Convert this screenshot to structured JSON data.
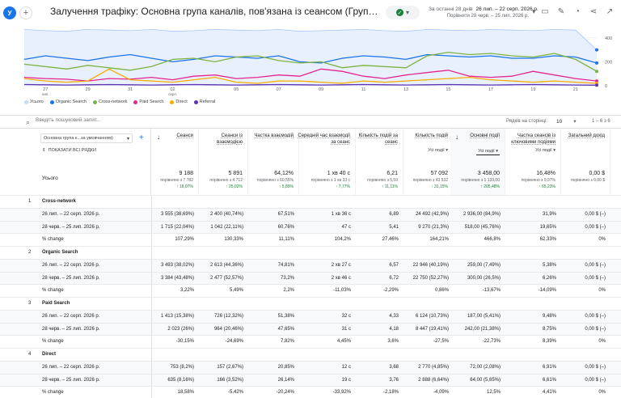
{
  "header": {
    "avatar_letter": "У",
    "add_label": "+",
    "title": "Залучення трафіку: Основна група каналів, пов'язана із сеансом (Група каналів за умовчанням)",
    "date_prefix": "За останні 28 днів",
    "date_current": "26 лип. – 22 серп. 2026 р.",
    "date_compare": "Порівняти 28 черв. – 25 лип. 2026 р."
  },
  "chart_data": {
    "type": "line",
    "x_tick_labels": [
      "27 лип.",
      "29",
      "31",
      "02 серп.",
      "05",
      "07",
      "09",
      "11",
      "13",
      "15",
      "17",
      "19",
      "21"
    ],
    "y_tick_labels": [
      "0",
      "200",
      "400"
    ],
    "ylim": [
      0,
      500
    ],
    "legend_position": "bottom-left",
    "series": [
      {
        "name": "Усього",
        "color": "#c6dcf7",
        "values": [
          470,
          460,
          455,
          470,
          465,
          460,
          470,
          455,
          460,
          470,
          465,
          460,
          470,
          455,
          460,
          465,
          470,
          460,
          455,
          470,
          465,
          460,
          470,
          465,
          460,
          470,
          465,
          300
        ]
      },
      {
        "name": "Organic Search",
        "color": "#1a73e8",
        "values": [
          220,
          250,
          230,
          210,
          240,
          260,
          230,
          200,
          220,
          250,
          240,
          230,
          250,
          200,
          190,
          230,
          250,
          240,
          220,
          260,
          250,
          240,
          250,
          230,
          230,
          250,
          240,
          190
        ]
      },
      {
        "name": "Cross-network",
        "color": "#7cb342",
        "values": [
          180,
          160,
          140,
          170,
          150,
          130,
          160,
          220,
          230,
          200,
          240,
          250,
          210,
          190,
          200,
          150,
          170,
          160,
          150,
          250,
          280,
          260,
          270,
          250,
          240,
          270,
          220,
          120
        ]
      },
      {
        "name": "Paid Search",
        "color": "#e52592",
        "values": [
          70,
          60,
          55,
          40,
          60,
          55,
          70,
          50,
          80,
          90,
          60,
          70,
          90,
          80,
          140,
          120,
          80,
          60,
          90,
          110,
          130,
          80,
          70,
          80,
          120,
          90,
          60,
          40
        ]
      },
      {
        "name": "Direct",
        "color": "#f9ab00",
        "values": [
          60,
          40,
          30,
          40,
          140,
          50,
          40,
          30,
          50,
          70,
          30,
          20,
          40,
          40,
          30,
          20,
          40,
          30,
          40,
          50,
          60,
          70,
          50,
          40,
          30,
          40,
          30,
          20
        ]
      },
      {
        "name": "Referral",
        "color": "#5e35b1",
        "values": [
          10,
          8,
          6,
          8,
          10,
          8,
          6,
          8,
          10,
          8,
          6,
          8,
          10,
          8,
          6,
          8,
          10,
          8,
          6,
          8,
          10,
          8,
          6,
          8,
          10,
          8,
          6,
          5
        ]
      }
    ]
  },
  "toolbar": {
    "search_placeholder": "Введіть пошуковий запит...",
    "rows_per_page_label": "Рядків на сторінці:",
    "rows_per_page_value": "10",
    "page_range": "1 – 6 з 6"
  },
  "table": {
    "dimension_select": "Основна група к...за умовчанням)",
    "show_all_rows": "ПОКАЗАТИ ВСІ РЯДКИ",
    "total_label": "Усього",
    "columns": [
      {
        "name": "Сеанси",
        "sub": "",
        "total": "9 188",
        "compare": "порівняно з 7 782",
        "change": "↑ 18,07%",
        "sorted": true
      },
      {
        "name": "Сеанси із взаємодією",
        "sub": "",
        "total": "5 891",
        "compare": "порівняно з 4 712",
        "change": "↑ 25,02%"
      },
      {
        "name": "Частка взаємодій",
        "sub": "",
        "total": "64,12%",
        "compare": "порівняно з 60,55%",
        "change": "↑ 5,89%"
      },
      {
        "name": "Середній час взаємодії за сеанс",
        "sub": "",
        "total": "1 хв 40 с",
        "compare": "порівняно з 1 хв 33 с",
        "change": "↑ 7,77%"
      },
      {
        "name": "Кількість подій за сеанс",
        "sub": "",
        "total": "6,21",
        "compare": "порівняно з 5,59",
        "change": "↑ 11,11%"
      },
      {
        "name": "Кількість подій",
        "sub": "Усі події",
        "total": "57 092",
        "compare": "порівняно з 43 532",
        "change": "↑ 31,15%"
      },
      {
        "name": "Основні події",
        "sub": "Усі події",
        "total": "3 458,00",
        "compare": "порівняно з 1 133,00",
        "change": "↑ 205,48%",
        "sorted": true
      },
      {
        "name": "Частка сеансів із ключовими подіями",
        "sub": "Усі події",
        "total": "16,48%",
        "compare": "порівняно з 9,97%",
        "change": "↑ 65,23%"
      },
      {
        "name": "Загальний дохід",
        "sub": "",
        "total": "0,00 $",
        "compare": "порівняно з 0,00 $",
        "change": ""
      }
    ],
    "rows": [
      {
        "kind": "group",
        "idx": "1",
        "label": "Cross-network",
        "cells": []
      },
      {
        "kind": "data",
        "label": "26 лип. – 22 серп. 2026 р.",
        "cells": [
          "3 555 (38,69%)",
          "2 400 (40,74%)",
          "67,51%",
          "1 хв 36 с",
          "6,89",
          "24 492 (42,9%)",
          "2 936,00 (84,9%)",
          "31,9%",
          "0,00 $ (–)"
        ]
      },
      {
        "kind": "data",
        "label": "28 черв. – 25 лип. 2026 р.",
        "cells": [
          "1 715 (22,04%)",
          "1 042 (22,11%)",
          "60,76%",
          "47 с",
          "5,41",
          "9 270 (21,3%)",
          "518,00 (45,76%)",
          "19,65%",
          "0,00 $ (–)"
        ]
      },
      {
        "kind": "change",
        "label": "% change",
        "cells": [
          "107,29%",
          "130,33%",
          "11,11%",
          "104,2%",
          "27,46%",
          "164,21%",
          "466,8%",
          "62,33%",
          "0%"
        ]
      },
      {
        "kind": "group",
        "idx": "2",
        "label": "Organic Search",
        "cells": []
      },
      {
        "kind": "data",
        "label": "26 лип. – 22 серп. 2026 р.",
        "cells": [
          "3 493 (38,02%)",
          "2 613 (44,36%)",
          "74,81%",
          "2 хв 27 с",
          "6,57",
          "22 946 (40,19%)",
          "259,00 (7,49%)",
          "5,38%",
          "0,00 $ (–)"
        ]
      },
      {
        "kind": "data",
        "label": "28 черв. – 25 лип. 2026 р.",
        "cells": [
          "3 384 (43,48%)",
          "2 477 (52,57%)",
          "73,2%",
          "2 хв 46 с",
          "6,72",
          "22 750 (52,27%)",
          "300,00 (26,5%)",
          "6,26%",
          "0,00 $ (–)"
        ]
      },
      {
        "kind": "change",
        "label": "% change",
        "cells": [
          "3,22%",
          "5,49%",
          "2,2%",
          "-11,03%",
          "-2,29%",
          "0,86%",
          "-13,67%",
          "-14,09%",
          "0%"
        ]
      },
      {
        "kind": "group",
        "idx": "3",
        "label": "Paid Search",
        "cells": []
      },
      {
        "kind": "data",
        "label": "26 лип. – 22 серп. 2026 р.",
        "cells": [
          "1 413 (15,38%)",
          "726 (12,32%)",
          "51,38%",
          "32 с",
          "4,33",
          "6 124 (10,73%)",
          "187,00 (5,41%)",
          "9,48%",
          "0,00 $ (–)"
        ]
      },
      {
        "kind": "data",
        "label": "28 черв. – 25 лип. 2026 р.",
        "cells": [
          "2 023 (26%)",
          "964 (20,46%)",
          "47,65%",
          "31 с",
          "4,18",
          "8 447 (19,41%)",
          "242,00 (21,38%)",
          "8,75%",
          "0,00 $ (–)"
        ]
      },
      {
        "kind": "change",
        "label": "% change",
        "cells": [
          "-30,15%",
          "-24,69%",
          "7,82%",
          "4,45%",
          "3,6%",
          "-27,5%",
          "-22,73%",
          "8,39%",
          "0%"
        ]
      },
      {
        "kind": "group",
        "idx": "4",
        "label": "Direct",
        "cells": []
      },
      {
        "kind": "data",
        "label": "26 лип. – 22 серп. 2026 р.",
        "cells": [
          "753 (8,2%)",
          "157 (2,67%)",
          "20,85%",
          "12 с",
          "3,68",
          "2 770 (4,85%)",
          "72,00 (2,08%)",
          "6,91%",
          "0,00 $ (–)"
        ]
      },
      {
        "kind": "data",
        "label": "28 черв. – 25 лип. 2026 р.",
        "cells": [
          "635 (8,16%)",
          "166 (3,52%)",
          "26,14%",
          "19 с",
          "3,76",
          "2 888 (6,64%)",
          "64,00 (5,65%)",
          "6,61%",
          "0,00 $ (–)"
        ]
      },
      {
        "kind": "change",
        "label": "% change",
        "cells": [
          "18,58%",
          "-5,42%",
          "-20,24%",
          "-33,92%",
          "-2,18%",
          "-4,09%",
          "12,5%",
          "4,41%",
          "0%"
        ]
      }
    ]
  }
}
